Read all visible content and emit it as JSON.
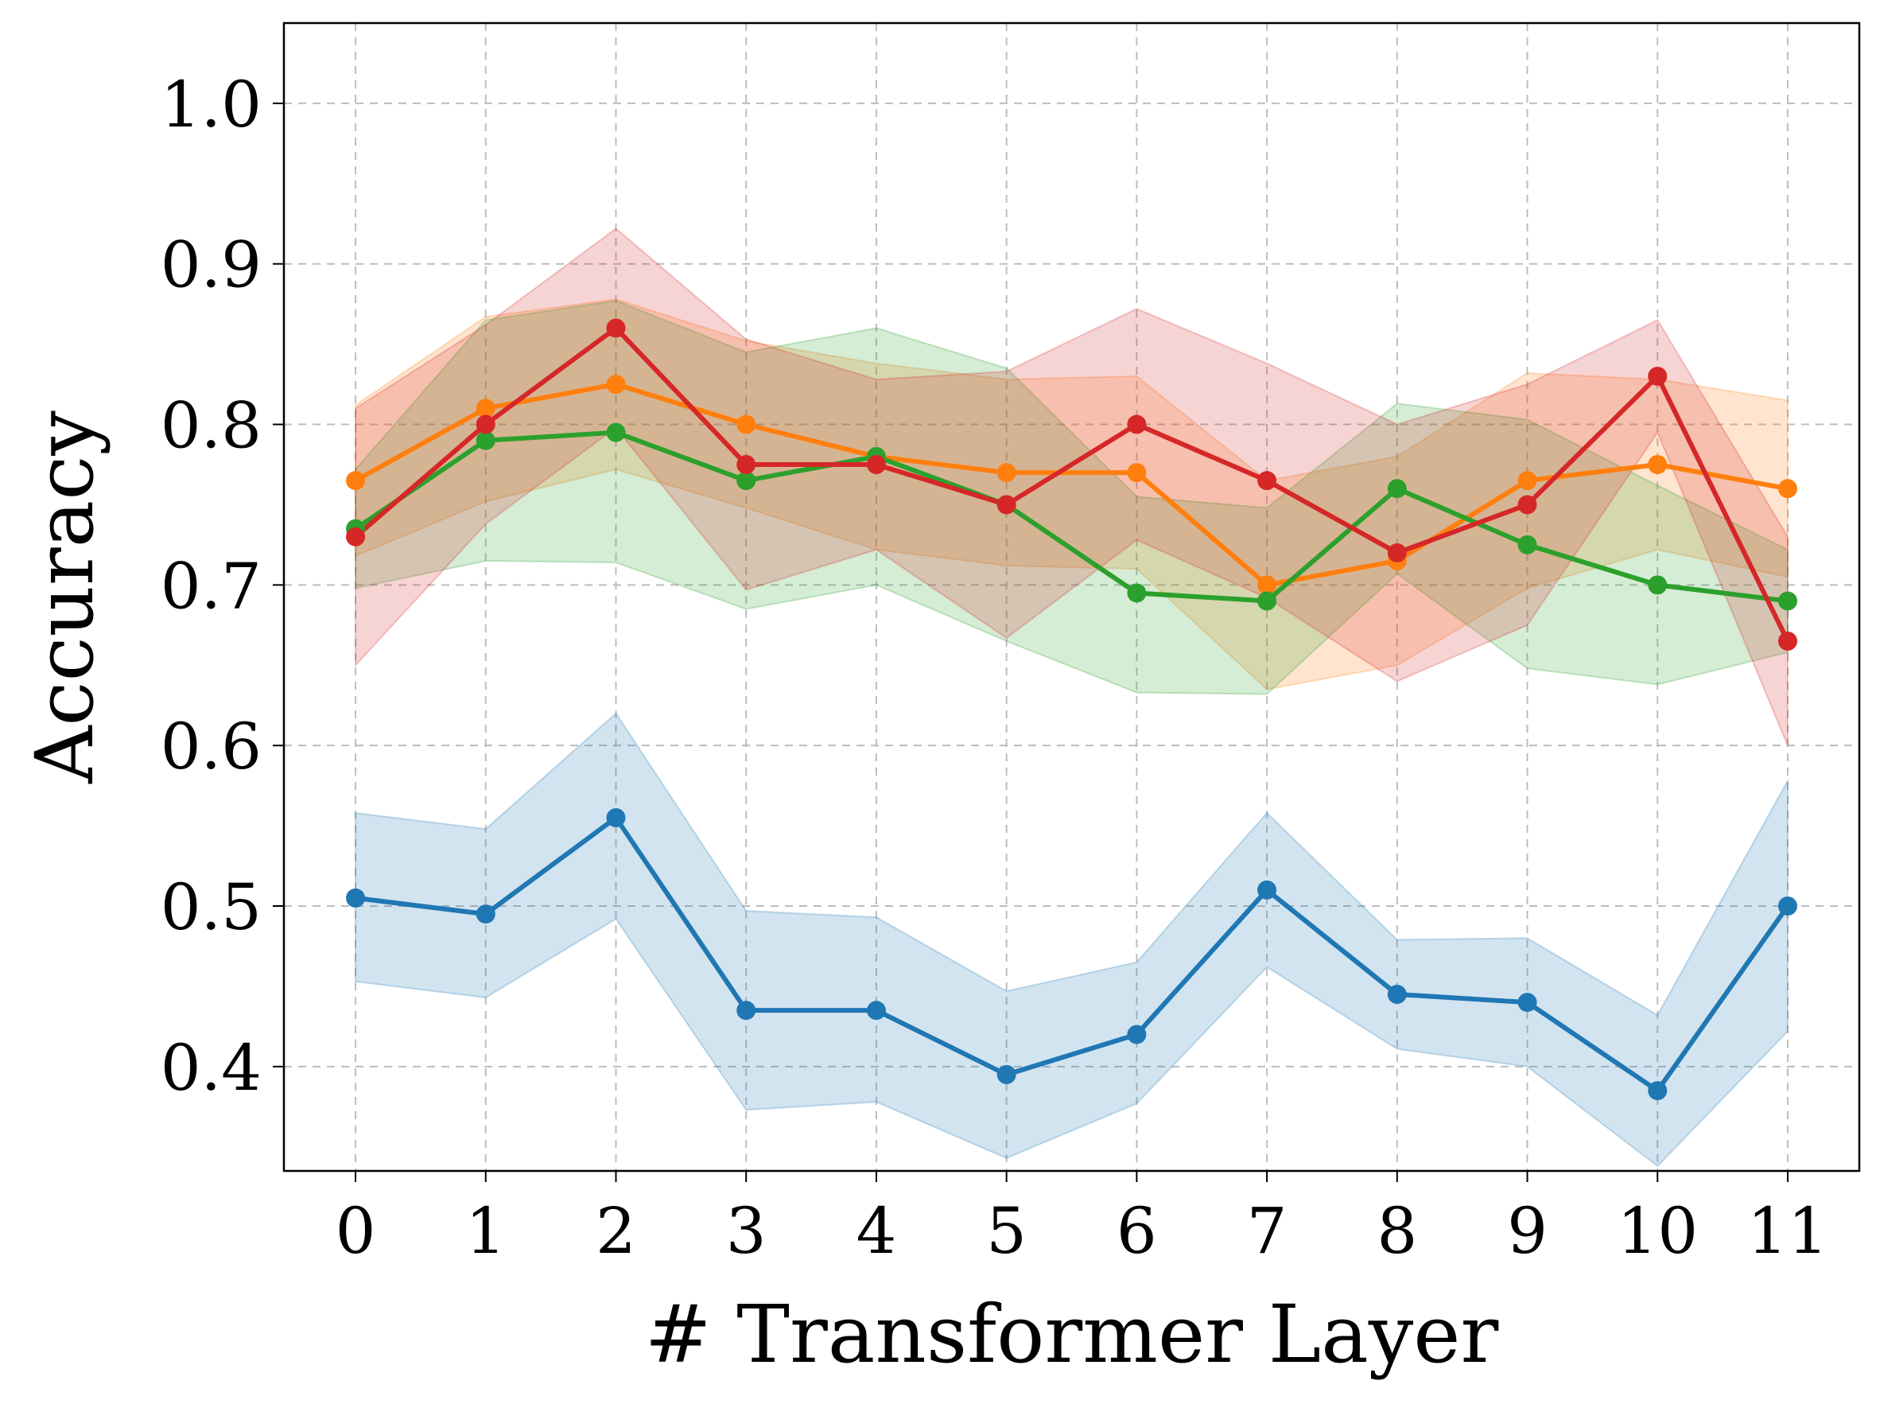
{
  "chart_data": {
    "type": "line",
    "title": "",
    "xlabel": "# Transformer Layer",
    "ylabel": "Accuracy",
    "x": [
      0,
      1,
      2,
      3,
      4,
      5,
      6,
      7,
      8,
      9,
      10,
      11
    ],
    "x_tick_labels": [
      "0",
      "1",
      "2",
      "3",
      "4",
      "5",
      "6",
      "7",
      "8",
      "9",
      "10",
      "11"
    ],
    "xlim": [
      -0.55,
      11.55
    ],
    "y_ticks": [
      0.4,
      0.5,
      0.6,
      0.7,
      0.8,
      0.9,
      1.0
    ],
    "y_tick_labels": [
      "0.4",
      "0.5",
      "0.6",
      "0.7",
      "0.8",
      "0.9",
      "1.0"
    ],
    "ylim": [
      0.335,
      1.05
    ],
    "grid": true,
    "legend": "none",
    "series": [
      {
        "name": "blue",
        "color": "#1f77b4",
        "values": [
          0.505,
          0.495,
          0.555,
          0.435,
          0.435,
          0.395,
          0.42,
          0.51,
          0.445,
          0.44,
          0.385,
          0.5
        ],
        "upper": [
          0.558,
          0.548,
          0.62,
          0.497,
          0.493,
          0.447,
          0.465,
          0.558,
          0.479,
          0.48,
          0.432,
          0.578
        ],
        "lower": [
          0.453,
          0.443,
          0.492,
          0.373,
          0.378,
          0.343,
          0.377,
          0.462,
          0.411,
          0.4,
          0.338,
          0.422
        ]
      },
      {
        "name": "orange",
        "color": "#ff7f0e",
        "values": [
          0.765,
          0.81,
          0.825,
          0.8,
          0.78,
          0.77,
          0.77,
          0.7,
          0.715,
          0.765,
          0.775,
          0.76
        ],
        "upper": [
          0.812,
          0.867,
          0.878,
          0.852,
          0.838,
          0.828,
          0.83,
          0.765,
          0.78,
          0.832,
          0.828,
          0.815
        ],
        "lower": [
          0.718,
          0.752,
          0.772,
          0.748,
          0.722,
          0.712,
          0.71,
          0.635,
          0.65,
          0.698,
          0.722,
          0.705
        ]
      },
      {
        "name": "green",
        "color": "#2ca02c",
        "values": [
          0.735,
          0.79,
          0.795,
          0.765,
          0.78,
          0.75,
          0.695,
          0.69,
          0.76,
          0.725,
          0.7,
          0.69
        ],
        "upper": [
          0.772,
          0.865,
          0.877,
          0.845,
          0.86,
          0.835,
          0.755,
          0.748,
          0.813,
          0.803,
          0.762,
          0.722
        ],
        "lower": [
          0.698,
          0.715,
          0.714,
          0.685,
          0.7,
          0.665,
          0.633,
          0.632,
          0.707,
          0.648,
          0.638,
          0.658
        ]
      },
      {
        "name": "red",
        "color": "#d62728",
        "values": [
          0.73,
          0.8,
          0.86,
          0.775,
          0.775,
          0.75,
          0.8,
          0.765,
          0.72,
          0.75,
          0.83,
          0.665
        ],
        "upper": [
          0.81,
          0.862,
          0.922,
          0.853,
          0.828,
          0.833,
          0.872,
          0.838,
          0.8,
          0.825,
          0.865,
          0.73
        ],
        "lower": [
          0.65,
          0.738,
          0.798,
          0.697,
          0.722,
          0.667,
          0.728,
          0.692,
          0.64,
          0.675,
          0.795,
          0.6
        ]
      }
    ]
  }
}
